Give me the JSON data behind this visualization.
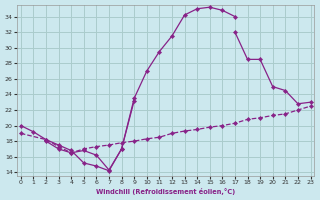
{
  "bg_color": "#cce8ee",
  "grid_color": "#aacccc",
  "line_color": "#882288",
  "xlabel": "Windchill (Refroidissement éolien,°C)",
  "xlim": [
    -0.3,
    23.3
  ],
  "ylim": [
    13.5,
    35.5
  ],
  "xticks": [
    0,
    1,
    2,
    3,
    4,
    5,
    6,
    7,
    8,
    9,
    10,
    11,
    12,
    13,
    14,
    15,
    16,
    17,
    18,
    19,
    20,
    21,
    22,
    23
  ],
  "yticks": [
    14,
    16,
    18,
    20,
    22,
    24,
    26,
    28,
    30,
    32,
    34
  ],
  "curve1_x": [
    0,
    1,
    2,
    3,
    4,
    5,
    6,
    7,
    8,
    9,
    10,
    11,
    12,
    13,
    14,
    15,
    16,
    17
  ],
  "curve1_y": [
    20.0,
    19.2,
    18.2,
    17.5,
    16.8,
    15.2,
    14.8,
    14.2,
    17.0,
    23.5,
    27.0,
    29.5,
    31.5,
    34.2,
    35.0,
    35.2,
    34.8,
    34.0
  ],
  "curve1_style": "-",
  "curve2_x": [
    0,
    2,
    3,
    4,
    5,
    6,
    7,
    8,
    9,
    10,
    11,
    12,
    13,
    14,
    15,
    16,
    17,
    18,
    19,
    20,
    21,
    22,
    23
  ],
  "curve2_y": [
    19.0,
    18.2,
    17.3,
    16.5,
    17.0,
    17.3,
    17.5,
    17.8,
    18.0,
    18.3,
    18.5,
    19.0,
    19.3,
    19.5,
    19.8,
    20.0,
    20.3,
    20.8,
    21.0,
    21.3,
    21.5,
    22.0,
    22.5
  ],
  "curve2_style": "--",
  "curve3_x": [
    2,
    3,
    4,
    5,
    6,
    7,
    8,
    9,
    17,
    18,
    19,
    20,
    21,
    22,
    23
  ],
  "curve3_y": [
    18.0,
    17.0,
    16.5,
    16.8,
    16.2,
    14.3,
    17.0,
    23.2,
    32.0,
    28.5,
    28.5,
    25.0,
    24.5,
    22.8,
    23.0
  ],
  "curve3_style": "-"
}
